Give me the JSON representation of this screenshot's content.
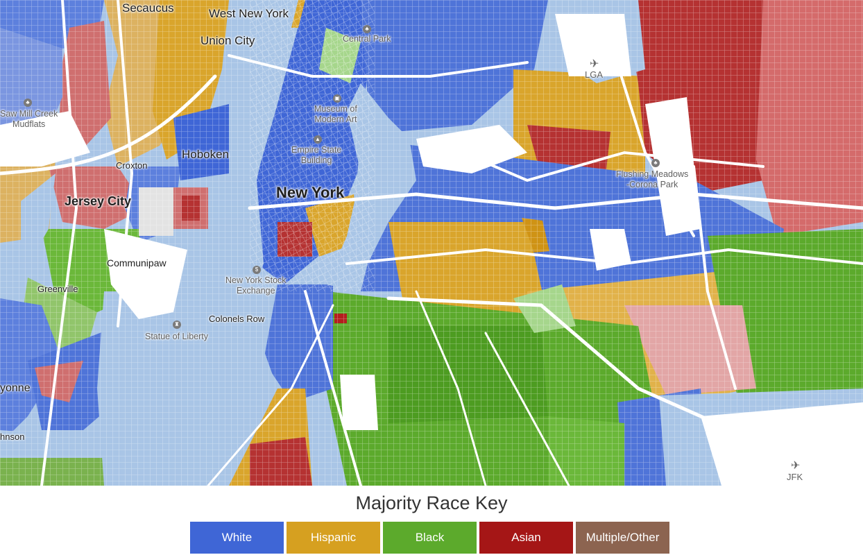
{
  "map": {
    "labels": {
      "secaucus": "Secaucus",
      "west_new_york": "West New York",
      "union_city": "Union City",
      "central_park": "Central Park",
      "lga": "LGA",
      "saw_mill_creek": "Saw Mill Creek\nMudflats",
      "museum": "Museum of\nModern Art",
      "croxton": "Croxton",
      "hoboken": "Hoboken",
      "empire_state": "Empire State\nBuilding",
      "flushing": "Flushing Meadows\n-Corona Park",
      "new_york": "New York",
      "jersey_city": "Jersey City",
      "communipaw": "Communipaw",
      "nyse": "New York Stock\nExchange",
      "greenville": "Greenville",
      "colonels_row": "Colonels Row",
      "statue": "Statue of Liberty",
      "bayonne": "yonne",
      "johnson": "hnson",
      "jfk": "JFK"
    }
  },
  "legend": {
    "title": "Majority Race Key",
    "items": [
      {
        "label": "White",
        "color": "#3f66d6"
      },
      {
        "label": "Hispanic",
        "color": "#d6a020"
      },
      {
        "label": "Black",
        "color": "#5caa2c"
      },
      {
        "label": "Asian",
        "color": "#a51616"
      },
      {
        "label": "Multiple/Other",
        "color": "#8c6450"
      }
    ]
  }
}
